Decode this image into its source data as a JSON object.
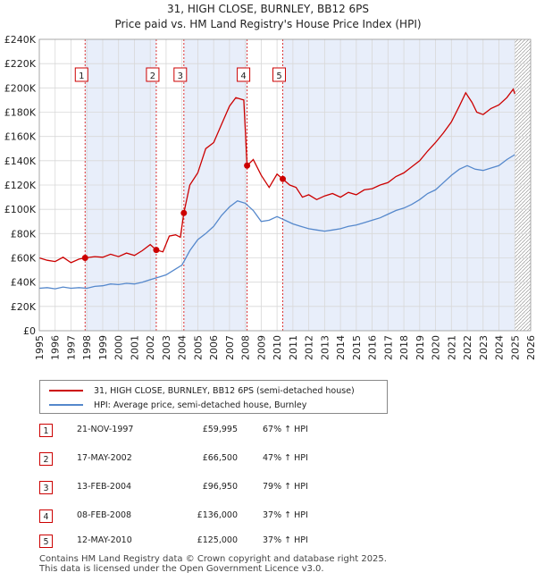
{
  "title": "31, HIGH CLOSE, BURNLEY, BB12 6PS",
  "subtitle": "Price paid vs. HM Land Registry's House Price Index (HPI)",
  "colors": {
    "property": "#cc0000",
    "hpi": "#5588cc",
    "shade": "#e8eefa",
    "vline": "#dd3333"
  },
  "legend": {
    "property": "31, HIGH CLOSE, BURNLEY, BB12 6PS (semi-detached house)",
    "hpi": "HPI: Average price, semi-detached house, Burnley"
  },
  "sales": [
    {
      "num": "1",
      "date": "21-NOV-1997",
      "price": "£59,995",
      "hpi": "67% ↑ HPI"
    },
    {
      "num": "2",
      "date": "17-MAY-2002",
      "price": "£66,500",
      "hpi": "47% ↑ HPI"
    },
    {
      "num": "3",
      "date": "13-FEB-2004",
      "price": "£96,950",
      "hpi": "79% ↑ HPI"
    },
    {
      "num": "4",
      "date": "08-FEB-2008",
      "price": "£136,000",
      "hpi": "37% ↑ HPI"
    },
    {
      "num": "5",
      "date": "12-MAY-2010",
      "price": "£125,000",
      "hpi": "37% ↑ HPI"
    }
  ],
  "footer": {
    "line1": "Contains HM Land Registry data © Crown copyright and database right 2025.",
    "line2": "This data is licensed under the Open Government Licence v3.0."
  },
  "chart_data": {
    "type": "line",
    "xlim": [
      1995,
      2026
    ],
    "ylim": [
      0,
      240000
    ],
    "x_ticks": [
      "1995",
      "1996",
      "1997",
      "1998",
      "1999",
      "2000",
      "2001",
      "2002",
      "2003",
      "2004",
      "2005",
      "2006",
      "2007",
      "2008",
      "2009",
      "2010",
      "2011",
      "2012",
      "2013",
      "2014",
      "2015",
      "2016",
      "2017",
      "2018",
      "2019",
      "2020",
      "2021",
      "2022",
      "2023",
      "2024",
      "2025",
      "2026"
    ],
    "y_ticks": [
      {
        "value": 0,
        "label": "£0"
      },
      {
        "value": 20000,
        "label": "£20K"
      },
      {
        "value": 40000,
        "label": "£40K"
      },
      {
        "value": 60000,
        "label": "£60K"
      },
      {
        "value": 80000,
        "label": "£80K"
      },
      {
        "value": 100000,
        "label": "£100K"
      },
      {
        "value": 120000,
        "label": "£120K"
      },
      {
        "value": 140000,
        "label": "£140K"
      },
      {
        "value": 160000,
        "label": "£160K"
      },
      {
        "value": 180000,
        "label": "£180K"
      },
      {
        "value": 200000,
        "label": "£200K"
      },
      {
        "value": 220000,
        "label": "£220K"
      },
      {
        "value": 240000,
        "label": "£240K"
      }
    ],
    "grid": true,
    "legend_position": "below",
    "hatched_after": 2025.0,
    "sale_markers": [
      {
        "label": "1",
        "x": 1997.89,
        "y": 59995
      },
      {
        "label": "2",
        "x": 2002.38,
        "y": 66500
      },
      {
        "label": "3",
        "x": 2004.12,
        "y": 96950
      },
      {
        "label": "4",
        "x": 2008.11,
        "y": 136000
      },
      {
        "label": "5",
        "x": 2010.36,
        "y": 125000
      }
    ],
    "series": [
      {
        "name": "31, HIGH CLOSE, BURNLEY, BB12 6PS (semi-detached house)",
        "points": [
          [
            1995.0,
            60000
          ],
          [
            1995.5,
            58000
          ],
          [
            1996.0,
            57000
          ],
          [
            1996.5,
            60500
          ],
          [
            1997.0,
            56000
          ],
          [
            1997.5,
            59000
          ],
          [
            1997.89,
            59995
          ],
          [
            1998.5,
            61000
          ],
          [
            1999.0,
            60500
          ],
          [
            1999.5,
            63000
          ],
          [
            2000.0,
            61000
          ],
          [
            2000.5,
            64000
          ],
          [
            2001.0,
            62000
          ],
          [
            2001.5,
            66000
          ],
          [
            2002.0,
            71000
          ],
          [
            2002.38,
            66500
          ],
          [
            2002.8,
            65000
          ],
          [
            2003.2,
            78000
          ],
          [
            2003.6,
            79000
          ],
          [
            2003.9,
            77000
          ],
          [
            2004.12,
            96950
          ],
          [
            2004.5,
            120000
          ],
          [
            2005.0,
            130000
          ],
          [
            2005.5,
            150000
          ],
          [
            2006.0,
            155000
          ],
          [
            2006.5,
            170000
          ],
          [
            2007.0,
            185000
          ],
          [
            2007.4,
            192000
          ],
          [
            2007.9,
            190000
          ],
          [
            2008.11,
            136000
          ],
          [
            2008.5,
            141000
          ],
          [
            2009.0,
            128000
          ],
          [
            2009.5,
            118000
          ],
          [
            2010.0,
            129000
          ],
          [
            2010.36,
            125000
          ],
          [
            2010.8,
            120000
          ],
          [
            2011.2,
            118000
          ],
          [
            2011.6,
            110000
          ],
          [
            2012.0,
            112000
          ],
          [
            2012.5,
            108000
          ],
          [
            2013.0,
            111000
          ],
          [
            2013.5,
            113000
          ],
          [
            2014.0,
            110000
          ],
          [
            2014.5,
            114000
          ],
          [
            2015.0,
            112000
          ],
          [
            2015.5,
            116000
          ],
          [
            2016.0,
            117000
          ],
          [
            2016.5,
            120000
          ],
          [
            2017.0,
            122000
          ],
          [
            2017.5,
            127000
          ],
          [
            2018.0,
            130000
          ],
          [
            2018.5,
            135000
          ],
          [
            2019.0,
            140000
          ],
          [
            2019.5,
            148000
          ],
          [
            2020.0,
            155000
          ],
          [
            2020.5,
            163000
          ],
          [
            2021.0,
            172000
          ],
          [
            2021.5,
            185000
          ],
          [
            2021.9,
            196000
          ],
          [
            2022.3,
            188000
          ],
          [
            2022.6,
            180000
          ],
          [
            2023.0,
            178000
          ],
          [
            2023.5,
            183000
          ],
          [
            2024.0,
            186000
          ],
          [
            2024.5,
            192000
          ],
          [
            2024.9,
            199000
          ],
          [
            2025.0,
            195000
          ]
        ]
      },
      {
        "name": "HPI: Average price, semi-detached house, Burnley",
        "points": [
          [
            1995.0,
            35000
          ],
          [
            1995.5,
            35500
          ],
          [
            1996.0,
            34500
          ],
          [
            1996.5,
            36000
          ],
          [
            1997.0,
            35000
          ],
          [
            1997.5,
            35500
          ],
          [
            1998.0,
            35000
          ],
          [
            1998.5,
            36500
          ],
          [
            1999.0,
            37000
          ],
          [
            1999.5,
            38500
          ],
          [
            2000.0,
            38000
          ],
          [
            2000.5,
            39000
          ],
          [
            2001.0,
            38500
          ],
          [
            2001.5,
            40000
          ],
          [
            2002.0,
            42000
          ],
          [
            2002.5,
            44000
          ],
          [
            2003.0,
            46000
          ],
          [
            2003.5,
            50000
          ],
          [
            2004.0,
            54000
          ],
          [
            2004.5,
            66000
          ],
          [
            2005.0,
            75000
          ],
          [
            2005.5,
            80000
          ],
          [
            2006.0,
            86000
          ],
          [
            2006.5,
            95000
          ],
          [
            2007.0,
            102000
          ],
          [
            2007.5,
            107000
          ],
          [
            2008.0,
            105000
          ],
          [
            2008.5,
            99000
          ],
          [
            2009.0,
            90000
          ],
          [
            2009.5,
            91000
          ],
          [
            2010.0,
            94000
          ],
          [
            2010.5,
            91000
          ],
          [
            2011.0,
            88000
          ],
          [
            2011.5,
            86000
          ],
          [
            2012.0,
            84000
          ],
          [
            2012.5,
            83000
          ],
          [
            2013.0,
            82000
          ],
          [
            2013.5,
            83000
          ],
          [
            2014.0,
            84000
          ],
          [
            2014.5,
            86000
          ],
          [
            2015.0,
            87000
          ],
          [
            2015.5,
            89000
          ],
          [
            2016.0,
            91000
          ],
          [
            2016.5,
            93000
          ],
          [
            2017.0,
            96000
          ],
          [
            2017.5,
            99000
          ],
          [
            2018.0,
            101000
          ],
          [
            2018.5,
            104000
          ],
          [
            2019.0,
            108000
          ],
          [
            2019.5,
            113000
          ],
          [
            2020.0,
            116000
          ],
          [
            2020.5,
            122000
          ],
          [
            2021.0,
            128000
          ],
          [
            2021.5,
            133000
          ],
          [
            2022.0,
            136000
          ],
          [
            2022.5,
            133000
          ],
          [
            2023.0,
            132000
          ],
          [
            2023.5,
            134000
          ],
          [
            2024.0,
            136000
          ],
          [
            2024.5,
            141000
          ],
          [
            2025.0,
            145000
          ]
        ]
      }
    ]
  }
}
